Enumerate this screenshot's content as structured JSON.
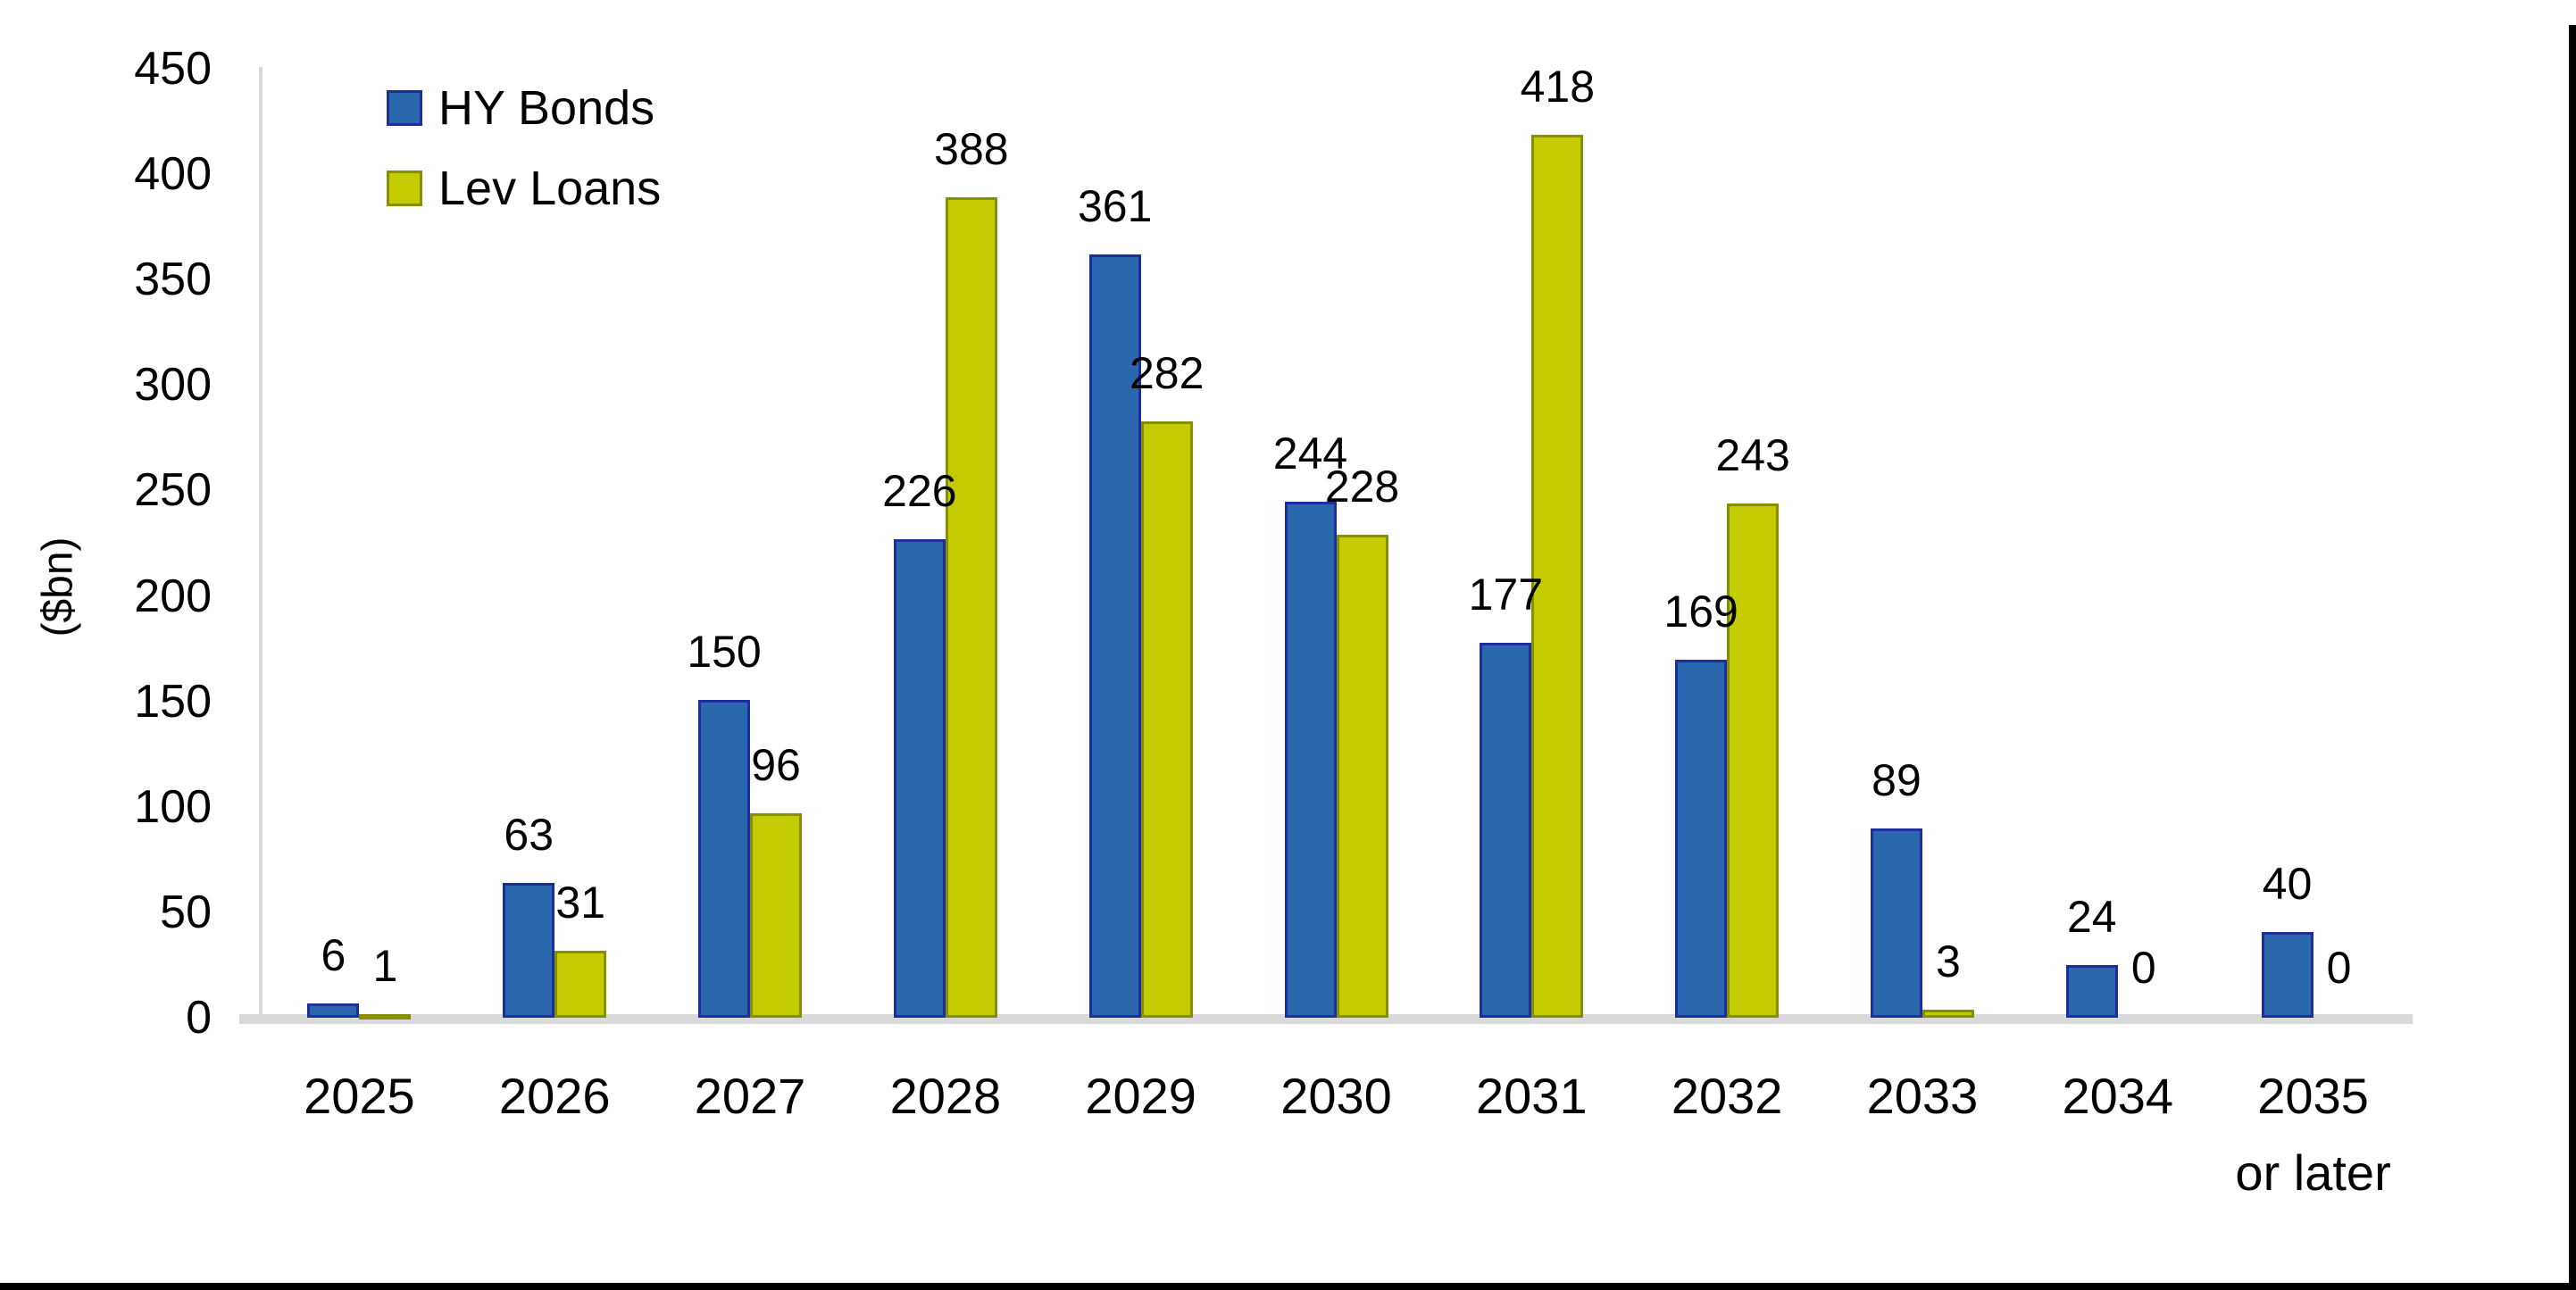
{
  "chart_data": {
    "type": "bar",
    "title": "",
    "ylabel": "($bn)",
    "ylim": [
      0,
      450
    ],
    "yticks": [
      0,
      50,
      100,
      150,
      200,
      250,
      300,
      350,
      400,
      450
    ],
    "grid": false,
    "legend_position": "top-left-inside",
    "axis_color": "#D9D9D9",
    "data_labels": true,
    "categories": [
      {
        "label": "2025"
      },
      {
        "label": "2026"
      },
      {
        "label": "2027"
      },
      {
        "label": "2028"
      },
      {
        "label": "2029"
      },
      {
        "label": "2030"
      },
      {
        "label": "2031"
      },
      {
        "label": "2032"
      },
      {
        "label": "2033"
      },
      {
        "label": "2034"
      },
      {
        "label": "2035",
        "sublabel": "or later"
      }
    ],
    "series": [
      {
        "name": "HY Bonds",
        "color": "#2A67AD",
        "border_color": "#1D2E9E",
        "values": [
          6,
          63,
          150,
          226,
          361,
          244,
          177,
          169,
          89,
          24,
          40
        ]
      },
      {
        "name": "Lev Loans",
        "color": "#C3CC02",
        "border_color": "#849000",
        "values": [
          1,
          31,
          96,
          388,
          282,
          228,
          418,
          243,
          3,
          0,
          0
        ]
      }
    ]
  }
}
